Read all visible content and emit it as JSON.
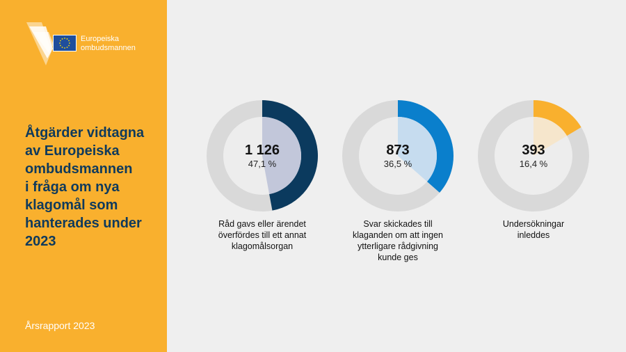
{
  "logo": {
    "lines": [
      "Europeiska",
      "ombudsmannen"
    ],
    "flag_color": "#1f4e9c"
  },
  "sidebar": {
    "title_lines": [
      "Åtgärder vidtagna",
      "av Europeiska",
      "ombudsmannen",
      "i fråga om nya",
      "klagomål som",
      "hanterades under",
      "2023"
    ],
    "footer": "Årsrapport 2023",
    "background": "#f9b02e",
    "title_color": "#0f3a5c"
  },
  "chart_data": {
    "type": "pie",
    "title": "Åtgärder vidtagna av Europeiska ombudsmannen i fråga om nya klagomål som hanterades under 2023",
    "charts": [
      {
        "value": "1 126",
        "percent_label": "47,1 %",
        "percent": 47.1,
        "caption_lines": [
          "Råd gavs eller ärendet",
          "överfördes till ett annat",
          "klagomålsorgan"
        ],
        "color": "#0b3a5e",
        "inner_color": "#c2c7da"
      },
      {
        "value": "873",
        "percent_label": "36,5 %",
        "percent": 36.5,
        "caption_lines": [
          "Svar skickades till",
          "klaganden om att ingen",
          "ytterligare rådgivning",
          "kunde ges"
        ],
        "color": "#0a7fcc",
        "inner_color": "#c6dcef"
      },
      {
        "value": "393",
        "percent_label": "16,4 %",
        "percent": 16.4,
        "caption_lines": [
          "Undersökningar",
          "inleddes"
        ],
        "color": "#f9b02e",
        "inner_color": "#f6e6cc"
      }
    ],
    "ring_color": "#d9d9d9",
    "center_color": "#ededed"
  }
}
